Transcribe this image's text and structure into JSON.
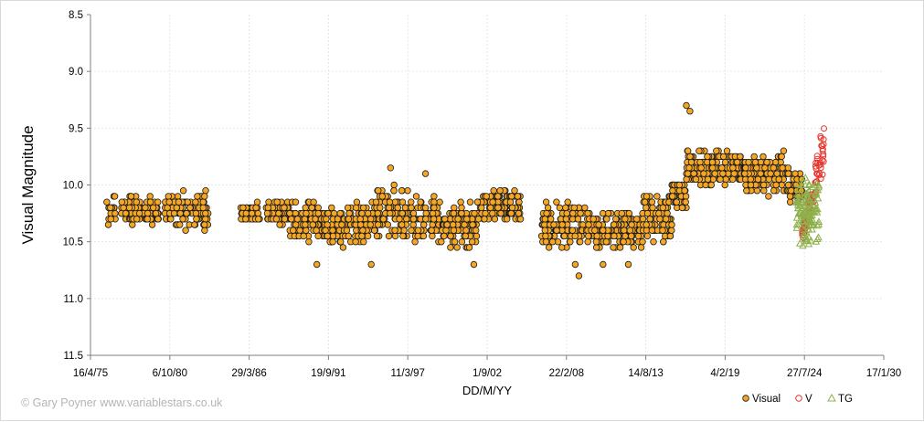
{
  "chart_data": {
    "type": "scatter",
    "title": "",
    "xlabel": "DD/M/YY",
    "ylabel": "Visual Magnitude",
    "credit": "© Gary Poyner  www.variablestars.co.uk",
    "y_reversed": true,
    "ylim": [
      8.5,
      11.5
    ],
    "y_ticks": [
      "8.5",
      "9.0",
      "9.5",
      "10.0",
      "10.5",
      "11.0",
      "11.5"
    ],
    "xlim": [
      "1975-04-16",
      "2030-01-17"
    ],
    "x_ticks": [
      "16/4/75",
      "6/10/80",
      "29/3/86",
      "19/9/91",
      "11/3/97",
      "1/9/02",
      "22/2/08",
      "14/8/13",
      "4/2/19",
      "27/7/24",
      "17/1/30"
    ],
    "grid": "horizontal and vertical, light dotted",
    "legend_position": "bottom-right",
    "colors": {
      "Visual": "#f5a623",
      "Visual_edge": "#1a1a1a",
      "V": "#e8322a",
      "TG": "#8db04a"
    },
    "series": [
      {
        "name": "Visual",
        "marker": "circle",
        "segments": [
          {
            "from": "1976-06-01",
            "to": "1976-12-31",
            "mean": 10.22,
            "spread": 0.12
          },
          {
            "from": "1977-06-01",
            "to": "1980-01-01",
            "mean": 10.23,
            "spread": 0.09
          },
          {
            "from": "1980-06-01",
            "to": "1983-06-01",
            "mean": 10.22,
            "spread": 0.11
          },
          {
            "from": "1985-09-01",
            "to": "1986-12-31",
            "mean": 10.25,
            "spread": 0.05
          },
          {
            "from": "1987-06-01",
            "to": "1989-01-01",
            "mean": 10.24,
            "spread": 0.08
          },
          {
            "from": "1989-01-01",
            "to": "1991-06-01",
            "mean": 10.32,
            "spread": 0.12
          },
          {
            "from": "1991-06-01",
            "to": "1993-01-01",
            "mean": 10.38,
            "spread": 0.12
          },
          {
            "from": "1993-01-01",
            "to": "1995-01-01",
            "mean": 10.33,
            "spread": 0.12
          },
          {
            "from": "1995-01-01",
            "to": "1997-06-01",
            "mean": 10.25,
            "spread": 0.16
          },
          {
            "from": "1997-06-01",
            "to": "1999-06-01",
            "mean": 10.3,
            "spread": 0.13
          },
          {
            "from": "1999-06-01",
            "to": "2002-01-01",
            "mean": 10.35,
            "spread": 0.14
          },
          {
            "from": "2002-01-01",
            "to": "2005-01-01",
            "mean": 10.18,
            "spread": 0.1
          },
          {
            "from": "2006-06-01",
            "to": "2009-06-01",
            "mean": 10.35,
            "spread": 0.14
          },
          {
            "from": "2009-06-01",
            "to": "2013-06-01",
            "mean": 10.4,
            "spread": 0.12
          },
          {
            "from": "2013-06-01",
            "to": "2015-06-01",
            "mean": 10.3,
            "spread": 0.15
          },
          {
            "from": "2015-06-01",
            "to": "2016-06-01",
            "mean": 10.08,
            "spread": 0.1
          },
          {
            "from": "2016-06-01",
            "to": "2020-06-01",
            "mean": 9.85,
            "spread": 0.12
          },
          {
            "from": "2020-06-01",
            "to": "2023-06-01",
            "mean": 9.9,
            "spread": 0.13
          },
          {
            "from": "2023-06-01",
            "to": "2024-06-01",
            "mean": 10.02,
            "spread": 0.12
          }
        ],
        "extremes": [
          {
            "date": "2016-06-01",
            "mag": 9.3
          },
          {
            "date": "2016-09-01",
            "mag": 9.35
          },
          {
            "date": "1996-01-01",
            "mag": 9.85
          },
          {
            "date": "1998-06-01",
            "mag": 9.9
          },
          {
            "date": "2009-01-01",
            "mag": 10.8
          },
          {
            "date": "2008-10-01",
            "mag": 10.7
          },
          {
            "date": "1990-12-01",
            "mag": 10.7
          },
          {
            "date": "1994-09-01",
            "mag": 10.7
          },
          {
            "date": "2001-10-01",
            "mag": 10.7
          },
          {
            "date": "2012-06-01",
            "mag": 10.7
          },
          {
            "date": "2010-09-01",
            "mag": 10.7
          }
        ]
      },
      {
        "name": "V",
        "marker": "open-circle",
        "from": "2024-06-01",
        "to": "2025-12-01",
        "mag_range": [
          9.5,
          10.5
        ]
      },
      {
        "name": "TG",
        "marker": "open-triangle",
        "from": "2024-01-01",
        "to": "2025-08-01",
        "mag_range": [
          9.9,
          10.55
        ]
      }
    ]
  }
}
